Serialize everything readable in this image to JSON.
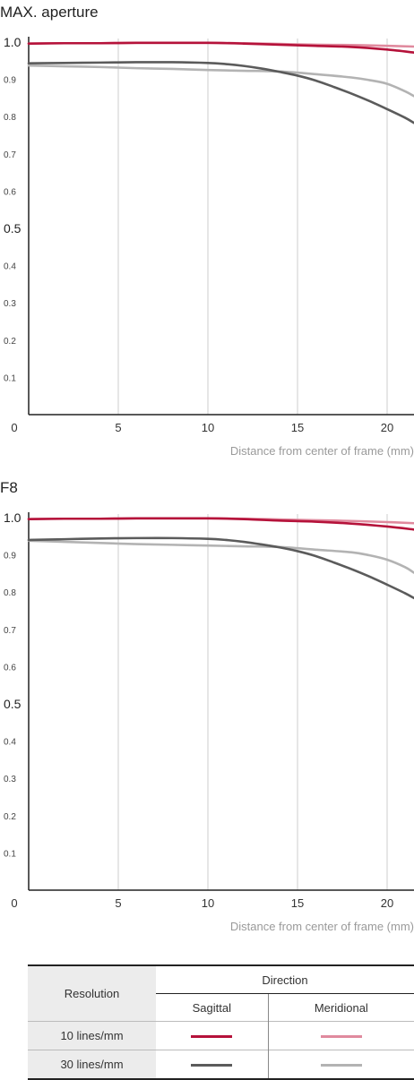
{
  "charts": [
    {
      "title": "MAX. aperture",
      "chart_data": {
        "type": "line",
        "title": "MAX. aperture",
        "xlabel": "Distance from center of frame (mm)",
        "ylabel": "",
        "xlim": [
          0,
          21.5
        ],
        "ylim": [
          0,
          1.0
        ],
        "x_ticks": [
          "0",
          "5",
          "10",
          "15",
          "20"
        ],
        "y_ticks": [
          "0.1",
          "0.2",
          "0.3",
          "0.4",
          "0.5",
          "0.6",
          "0.7",
          "0.8",
          "0.9",
          "1.0"
        ],
        "grid": "vertical",
        "series": [
          {
            "name": "10 lines/mm Sagittal",
            "color": "#b5123a",
            "x": [
              0,
              2,
              4,
              6,
              8,
              10,
              12,
              14,
              16,
              18,
              20,
              21.5
            ],
            "y": [
              0.996,
              0.997,
              0.997,
              0.998,
              0.998,
              0.998,
              0.996,
              0.993,
              0.99,
              0.987,
              0.98,
              0.972
            ]
          },
          {
            "name": "10 lines/mm Meridional",
            "color": "#e08a9e",
            "x": [
              0,
              2,
              4,
              6,
              8,
              10,
              12,
              14,
              16,
              18,
              20,
              21.5
            ],
            "y": [
              0.996,
              0.997,
              0.997,
              0.998,
              0.998,
              0.998,
              0.997,
              0.995,
              0.993,
              0.992,
              0.99,
              0.988
            ]
          },
          {
            "name": "30 lines/mm Sagittal",
            "color": "#5b5b5b",
            "x": [
              0,
              2,
              4,
              6,
              8,
              10,
              11,
              12,
              13,
              14,
              15,
              16,
              17,
              18,
              19,
              20,
              21,
              21.5
            ],
            "y": [
              0.943,
              0.944,
              0.945,
              0.946,
              0.946,
              0.944,
              0.941,
              0.936,
              0.929,
              0.92,
              0.91,
              0.897,
              0.88,
              0.862,
              0.842,
              0.82,
              0.797,
              0.783
            ]
          },
          {
            "name": "30 lines/mm Meridional",
            "color": "#b3b3b3",
            "x": [
              0,
              2,
              4,
              6,
              8,
              10,
              12,
              14,
              16,
              18,
              19,
              20,
              21,
              21.5
            ],
            "y": [
              0.937,
              0.935,
              0.933,
              0.93,
              0.928,
              0.925,
              0.923,
              0.921,
              0.914,
              0.905,
              0.898,
              0.888,
              0.868,
              0.855
            ]
          }
        ]
      }
    },
    {
      "title": "F8",
      "chart_data": {
        "type": "line",
        "title": "F8",
        "xlabel": "Distance from center of frame (mm)",
        "ylabel": "",
        "xlim": [
          0,
          21.5
        ],
        "ylim": [
          0,
          1.0
        ],
        "x_ticks": [
          "0",
          "5",
          "10",
          "15",
          "20"
        ],
        "y_ticks": [
          "0.1",
          "0.2",
          "0.3",
          "0.4",
          "0.5",
          "0.6",
          "0.7",
          "0.8",
          "0.9",
          "1.0"
        ],
        "grid": "vertical",
        "series": [
          {
            "name": "10 lines/mm Sagittal",
            "color": "#b5123a",
            "x": [
              0,
              2,
              4,
              6,
              8,
              10,
              12,
              14,
              16,
              18,
              20,
              21.5
            ],
            "y": [
              0.996,
              0.997,
              0.997,
              0.998,
              0.998,
              0.998,
              0.996,
              0.992,
              0.989,
              0.984,
              0.976,
              0.968
            ]
          },
          {
            "name": "10 lines/mm Meridional",
            "color": "#e08a9e",
            "x": [
              0,
              2,
              4,
              6,
              8,
              10,
              12,
              14,
              16,
              18,
              20,
              21.5
            ],
            "y": [
              0.996,
              0.997,
              0.997,
              0.998,
              0.998,
              0.998,
              0.997,
              0.995,
              0.993,
              0.991,
              0.988,
              0.985
            ]
          },
          {
            "name": "30 lines/mm Sagittal",
            "color": "#5b5b5b",
            "x": [
              0,
              2,
              4,
              6,
              8,
              10,
              11,
              12,
              13,
              14,
              15,
              16,
              17,
              18,
              19,
              20,
              21,
              21.5
            ],
            "y": [
              0.94,
              0.942,
              0.944,
              0.945,
              0.945,
              0.943,
              0.94,
              0.935,
              0.928,
              0.92,
              0.91,
              0.897,
              0.88,
              0.862,
              0.842,
              0.82,
              0.797,
              0.784
            ]
          },
          {
            "name": "30 lines/mm Meridional",
            "color": "#b3b3b3",
            "x": [
              0,
              2,
              4,
              6,
              8,
              10,
              12,
              14,
              16,
              18,
              19,
              20,
              21,
              21.5
            ],
            "y": [
              0.938,
              0.935,
              0.932,
              0.929,
              0.927,
              0.925,
              0.923,
              0.921,
              0.914,
              0.907,
              0.899,
              0.887,
              0.867,
              0.852
            ]
          }
        ]
      }
    }
  ],
  "legend": {
    "resolution_label": "Resolution",
    "direction_label": "Direction",
    "sagittal_label": "Sagittal",
    "meridional_label": "Meridional",
    "rows": [
      {
        "label": "10 lines/mm",
        "sagittal_color": "#b5123a",
        "meridional_color": "#e08a9e"
      },
      {
        "label": "30 lines/mm",
        "sagittal_color": "#5b5b5b",
        "meridional_color": "#b3b3b3"
      }
    ]
  }
}
